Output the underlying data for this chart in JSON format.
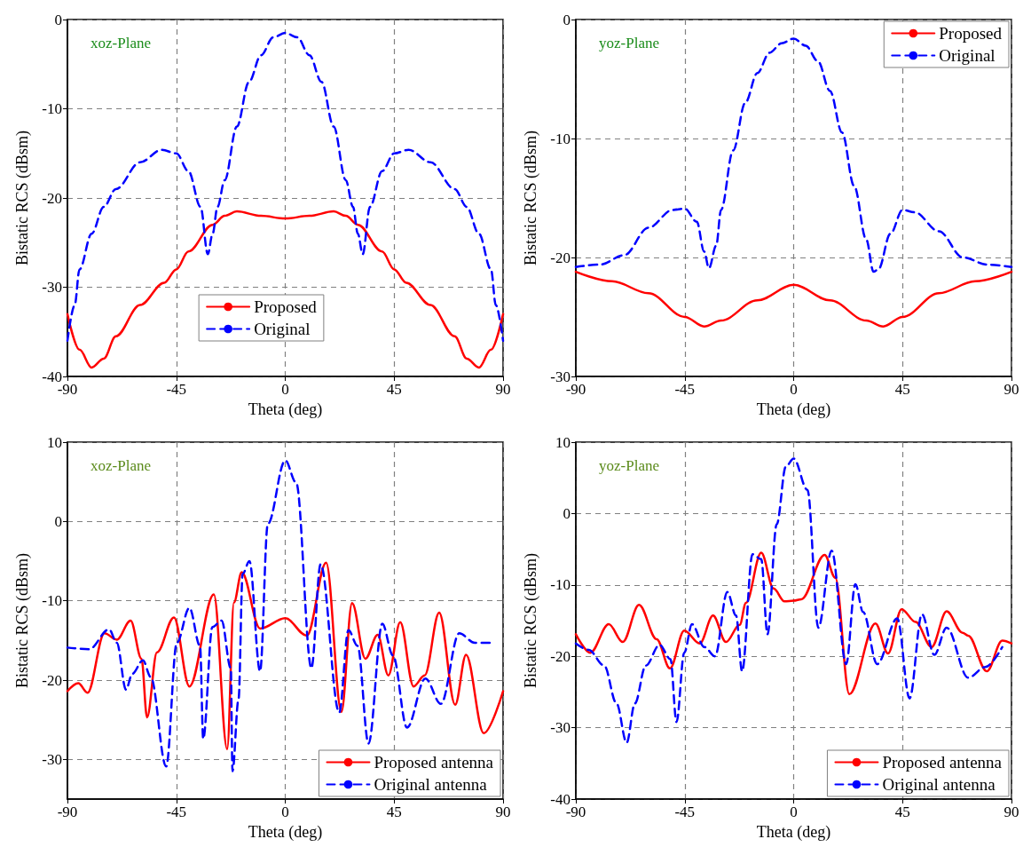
{
  "chart_data": [
    {
      "type": "line",
      "xlabel": "Theta (deg)",
      "ylabel": "Bistatic RCS (dBsm)",
      "annotations": [
        "xoz-Plane"
      ],
      "xlim": [
        -90,
        90
      ],
      "xticks": [
        -90,
        -45,
        0,
        45,
        90
      ],
      "ylim": [
        -40,
        0
      ],
      "yticks": [
        -40,
        -30,
        -20,
        -10,
        0
      ],
      "grid": true,
      "legend": "bottom",
      "marker": "none",
      "series": [
        {
          "name": "Proposed",
          "color": "#ff0000",
          "line_style": "solid",
          "x": [
            -90,
            -85,
            -80,
            -75,
            -70,
            -60,
            -50,
            -45,
            -40,
            -30,
            -25,
            -20,
            -10,
            0,
            10,
            20,
            25,
            30,
            40,
            45,
            50,
            60,
            70,
            75,
            80,
            85,
            90
          ],
          "values": [
            -33,
            -37,
            -39,
            -38,
            -35.5,
            -32,
            -29.5,
            -28,
            -26,
            -23,
            -22,
            -21.5,
            -22,
            -22.3,
            -22,
            -21.5,
            -22,
            -23,
            -26,
            -28,
            -29.5,
            -32,
            -35.5,
            -38,
            -39,
            -37,
            -33
          ]
        },
        {
          "name": "Original",
          "color": "#0000ff",
          "line_style": "dashed",
          "x": [
            -90,
            -87,
            -85,
            -80,
            -75,
            -70,
            -60,
            -51,
            -45,
            -40,
            -35,
            -32,
            -30,
            -28,
            -25,
            -20,
            -15,
            -10,
            -5,
            0,
            5,
            10,
            15,
            20,
            25,
            28,
            30,
            32,
            35,
            40,
            45,
            51,
            60,
            70,
            75,
            80,
            85,
            87,
            90
          ],
          "values": [
            -36,
            -32,
            -28,
            -24,
            -21,
            -19,
            -16,
            -14.6,
            -15,
            -17,
            -21,
            -26.3,
            -24,
            -21,
            -18,
            -12,
            -7,
            -4,
            -2,
            -1.5,
            -2,
            -4,
            -7,
            -12,
            -18,
            -21,
            -24,
            -26.3,
            -21,
            -17,
            -15,
            -14.6,
            -16,
            -19,
            -21,
            -24,
            -28,
            -32,
            -36
          ]
        }
      ]
    },
    {
      "type": "line",
      "xlabel": "Theta (deg)",
      "ylabel": "Bistatic RCS (dBsm)",
      "annotations": [
        "yoz-Plane"
      ],
      "xlim": [
        -90,
        90
      ],
      "xticks": [
        -90,
        -45,
        0,
        45,
        90
      ],
      "ylim": [
        -30,
        0
      ],
      "yticks": [
        -30,
        -20,
        -10,
        0
      ],
      "grid": true,
      "legend": "top right",
      "marker": "none",
      "series": [
        {
          "name": "Proposed",
          "color": "#ff0000",
          "line_style": "solid",
          "x": [
            -90,
            -75,
            -60,
            -45,
            -37,
            -30,
            -15,
            0,
            15,
            30,
            37,
            45,
            60,
            75,
            90
          ],
          "values": [
            -21.2,
            -22,
            -23,
            -25,
            -25.8,
            -25.3,
            -23.6,
            -22.3,
            -23.6,
            -25.3,
            -25.8,
            -25,
            -23,
            -22,
            -21.2
          ]
        },
        {
          "name": "Original",
          "color": "#0000ff",
          "line_style": "dashed",
          "x": [
            -90,
            -80,
            -70,
            -60,
            -50,
            -45,
            -40,
            -37,
            -35,
            -32,
            -30,
            -25,
            -20,
            -15,
            -10,
            -5,
            0,
            5,
            10,
            15,
            20,
            25,
            30,
            33,
            35,
            40,
            45,
            50,
            60,
            70,
            80,
            90
          ],
          "values": [
            -20.8,
            -20.6,
            -19.8,
            -17.5,
            -16,
            -15.9,
            -17,
            -19.5,
            -20.9,
            -19,
            -16,
            -11,
            -7,
            -4.5,
            -2.8,
            -2,
            -1.6,
            -2.2,
            -3.5,
            -6,
            -9.5,
            -14,
            -18.5,
            -21.2,
            -21,
            -18,
            -16,
            -16.2,
            -17.8,
            -20,
            -20.6,
            -20.8
          ]
        }
      ]
    },
    {
      "type": "line",
      "xlabel": "Theta (deg)",
      "ylabel": "Bistatic RCS (dBsm)",
      "annotations": [
        "xoz-Plane"
      ],
      "xlim": [
        -90,
        90
      ],
      "xticks": [
        -90,
        -45,
        0,
        45,
        90
      ],
      "ylim": [
        -35,
        10
      ],
      "yticks": [
        -30,
        -20,
        -10,
        0,
        10
      ],
      "grid": true,
      "legend": "bottom right",
      "marker": "none",
      "series": [
        {
          "name": "Proposed antenna",
          "color": "#ff0000",
          "line_style": "solid",
          "x": [
            -90,
            -85.5,
            -81.7,
            -74.7,
            -69.6,
            -63.9,
            -59.4,
            -57.1,
            -53,
            -46,
            -39.6,
            -29.5,
            -24,
            -21.2,
            -18,
            -10.4,
            0,
            8.9,
            16.9,
            23.2,
            27.6,
            33.1,
            38.2,
            42.6,
            47.5,
            53,
            57.6,
            63.6,
            70.2,
            74.7,
            82,
            90
          ],
          "values": [
            -21.4,
            -20.4,
            -21.6,
            -14.1,
            -14.9,
            -12.5,
            -17.3,
            -24.7,
            -16.5,
            -12.1,
            -20.8,
            -9.2,
            -28.7,
            -10.2,
            -6.4,
            -13.5,
            -12.2,
            -14.4,
            -5.2,
            -24,
            -10.3,
            -17.3,
            -14.3,
            -19.4,
            -12.7,
            -20.8,
            -19.4,
            -11.5,
            -23.1,
            -16.8,
            -26.7,
            -21.4
          ]
        },
        {
          "name": "Original antenna",
          "color": "#0000ff",
          "line_style": "dashed",
          "x": [
            -90,
            -81,
            -72.8,
            -69.6,
            -65.8,
            -63.2,
            -58.8,
            -55.6,
            -49.2,
            -44.8,
            -39.6,
            -35.2,
            -33.9,
            -30.1,
            -26.3,
            -22.5,
            -21.8,
            -19.3,
            -17.6,
            -14.8,
            -10.4,
            -7.2,
            0,
            4.5,
            10.8,
            14.6,
            22.3,
            26.1,
            29.9,
            34.4,
            40.1,
            44.5,
            50.3,
            57.9,
            64.3,
            71.9,
            78.3,
            85.5
          ],
          "values": [
            -15.9,
            -16.1,
            -13.6,
            -15.3,
            -21.2,
            -19.2,
            -17.5,
            -19.6,
            -30.9,
            -15.3,
            -10.9,
            -15.7,
            -27.4,
            -13.3,
            -12.5,
            -18.5,
            -31.5,
            -22.4,
            -6.6,
            -5,
            -18.9,
            -0.3,
            7.7,
            4.9,
            -18.5,
            -5.4,
            -24.1,
            -13.7,
            -15.7,
            -28,
            -12.9,
            -16.9,
            -26,
            -19.8,
            -23,
            -14.1,
            -15.3,
            -15.3
          ]
        }
      ]
    },
    {
      "type": "line",
      "xlabel": "Theta (deg)",
      "ylabel": "Bistatic RCS (dBsm)",
      "annotations": [
        "yoz-Plane"
      ],
      "xlim": [
        -90,
        90
      ],
      "xticks": [
        -90,
        -45,
        0,
        45,
        90
      ],
      "ylim": [
        -40,
        10
      ],
      "yticks": [
        -40,
        -30,
        -20,
        -10,
        0,
        10
      ],
      "grid": true,
      "legend": "bottom right",
      "marker": "none",
      "series": [
        {
          "name": "Proposed antenna",
          "color": "#ff0000",
          "line_style": "solid",
          "x": [
            -90,
            -84,
            -76.4,
            -70.6,
            -63.9,
            -56.6,
            -51.1,
            -45.2,
            -38.8,
            -33.3,
            -28,
            -22.3,
            -19.7,
            -13.4,
            -8.3,
            -3.8,
            0,
            3.2,
            12.8,
            17.2,
            23,
            33.8,
            39,
            44.6,
            50.4,
            57,
            63.2,
            69.8,
            72.1,
            79.8,
            86.2,
            90
          ],
          "values": [
            -16.9,
            -19.5,
            -15.5,
            -18,
            -12.8,
            -17.6,
            -21.7,
            -16.4,
            -18.2,
            -14.3,
            -18,
            -15.6,
            -12.5,
            -5.5,
            -10.5,
            -12.3,
            -12.2,
            -12,
            -5.8,
            -9,
            -25.3,
            -15.4,
            -19.6,
            -13.4,
            -15.2,
            -18.7,
            -13.7,
            -16.7,
            -17.1,
            -22.1,
            -17.8,
            -18.2
          ]
        },
        {
          "name": "Original antenna",
          "color": "#0000ff",
          "line_style": "dashed",
          "x": [
            -90,
            -84.7,
            -78.3,
            -73.2,
            -69,
            -65.6,
            -61.1,
            -55.4,
            -50.9,
            -48.4,
            -45.2,
            -42,
            -36.9,
            -32.5,
            -27.4,
            -23.8,
            -21.3,
            -17,
            -13.4,
            -10.8,
            -7,
            -3.2,
            0,
            5.7,
            10.2,
            15.7,
            21.7,
            25.5,
            28.7,
            34.5,
            42.8,
            47.9,
            53,
            58.1,
            63.2,
            72.1,
            79.2,
            86.2
          ],
          "values": [
            -18.2,
            -19.1,
            -21.3,
            -26.6,
            -32.1,
            -26.6,
            -21.3,
            -18.4,
            -20.4,
            -29.2,
            -19.5,
            -15.5,
            -18.7,
            -20,
            -11,
            -14.3,
            -22.1,
            -5.7,
            -6.4,
            -16.9,
            -1.5,
            6.6,
            7.7,
            3.3,
            -16,
            -5.2,
            -21.1,
            -9.9,
            -13.8,
            -21.1,
            -14.7,
            -25.9,
            -14.1,
            -19.8,
            -16,
            -23,
            -21.5,
            -18.7
          ]
        }
      ]
    }
  ]
}
